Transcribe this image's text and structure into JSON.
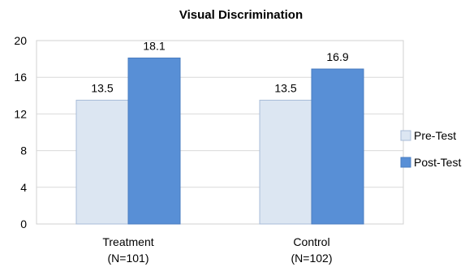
{
  "chart_data": {
    "type": "bar",
    "title": "Visual Discrimination",
    "categories": [
      [
        "Treatment",
        "(N=101)"
      ],
      [
        "Control",
        "(N=102)"
      ]
    ],
    "series": [
      {
        "name": "Pre-Test",
        "values": [
          13.5,
          13.5
        ],
        "color": "#dce6f2",
        "stroke": "#a8bcd8"
      },
      {
        "name": "Post-Test",
        "values": [
          18.1,
          16.9
        ],
        "color": "#588fd6",
        "stroke": "#4a7cc0"
      }
    ],
    "yticks": [
      "0",
      "4",
      "8",
      "12",
      "16",
      "20"
    ],
    "ylim": [
      0,
      20
    ],
    "grid": true,
    "legend": "right",
    "xlabel": "",
    "ylabel": ""
  }
}
